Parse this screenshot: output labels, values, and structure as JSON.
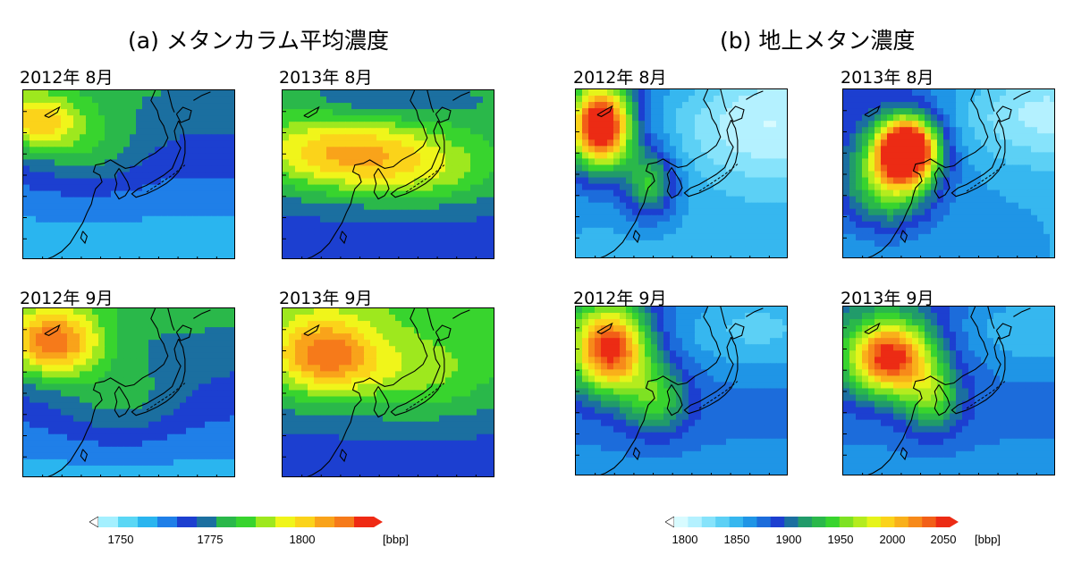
{
  "panel_a": {
    "title": "(a) メタンカラム平均濃度",
    "maps": [
      {
        "label": "2012年 8月"
      },
      {
        "label": "2013年 8月"
      },
      {
        "label": "2012年 9月"
      },
      {
        "label": "2013年 9月"
      }
    ],
    "colorbar": {
      "ticks": [
        "1750",
        "1775",
        "1800"
      ],
      "unit": "[bbp]",
      "colors": [
        "#a4f0ff",
        "#5ad7f5",
        "#2ab5ef",
        "#1f7fe8",
        "#1c3fd0",
        "#1b6fa0",
        "#2ab84a",
        "#38d42e",
        "#9ee81e",
        "#f0f51a",
        "#fbd31a",
        "#f9a31a",
        "#f67a1a",
        "#ef2a14"
      ]
    }
  },
  "panel_b": {
    "title": "(b) 地上メタン濃度",
    "maps": [
      {
        "label": "2012年 8月"
      },
      {
        "label": "2013年 8月"
      },
      {
        "label": "2012年 9月"
      },
      {
        "label": "2013年 9月"
      }
    ],
    "colorbar": {
      "ticks": [
        "1800",
        "1850",
        "1900",
        "1950",
        "2000",
        "2050"
      ],
      "unit": "[bbp]",
      "colors": [
        "#d8fbff",
        "#b4f1ff",
        "#86e3fb",
        "#5cd0f5",
        "#36b7ef",
        "#1f95e6",
        "#1c6cdb",
        "#1c3fd0",
        "#1b6fa0",
        "#219b6a",
        "#2ab84a",
        "#38d42e",
        "#7ee223",
        "#b4ec1e",
        "#e6f41a",
        "#fbd31a",
        "#f9b01a",
        "#f78a1a",
        "#f25f17",
        "#ec2b14"
      ]
    }
  }
}
